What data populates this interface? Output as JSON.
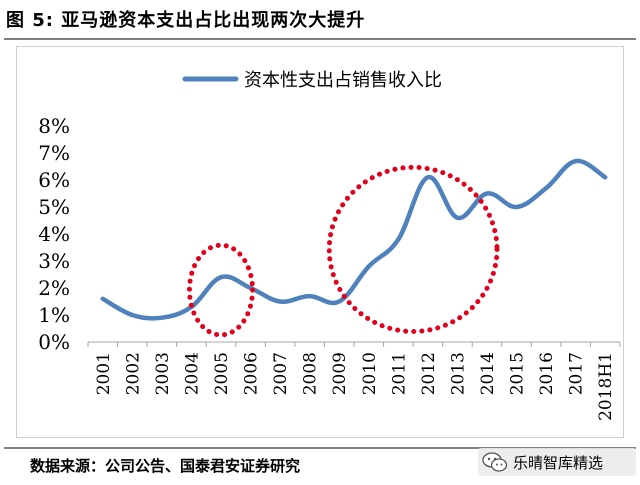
{
  "figure": {
    "title": "图 5:  亚马逊资本支出占比出现两次大提升",
    "source": "数据来源：公司公告、国泰君安证券研究",
    "watermark": "乐晴智库精选",
    "watermark_icon": "wechat-icon"
  },
  "chart_data": {
    "type": "line",
    "title": "",
    "xlabel": "",
    "ylabel": "",
    "legend_position": "top-center",
    "grid": false,
    "ylim": [
      0,
      8
    ],
    "ytick_labels": [
      "0%",
      "1%",
      "2%",
      "3%",
      "4%",
      "5%",
      "6%",
      "7%",
      "8%"
    ],
    "categories": [
      "2001",
      "2002",
      "2003",
      "2004",
      "2005",
      "2006",
      "2007",
      "2008",
      "2009",
      "2010",
      "2011",
      "2012",
      "2013",
      "2014",
      "2015",
      "2016",
      "2017",
      "2018H1"
    ],
    "series": [
      {
        "name": "资本性支出占销售收入比",
        "color": "#4f81bd",
        "values": [
          1.6,
          1.0,
          0.9,
          1.3,
          2.4,
          2.0,
          1.5,
          1.7,
          1.5,
          2.8,
          3.8,
          6.1,
          4.6,
          5.5,
          5.0,
          5.7,
          6.7,
          6.1
        ]
      }
    ],
    "annotations": [
      {
        "type": "dotted-ellipse",
        "color": "#e0001b",
        "around": [
          "2004",
          "2006"
        ]
      },
      {
        "type": "dotted-ellipse",
        "color": "#e0001b",
        "around": [
          "2009",
          "2014"
        ]
      }
    ]
  }
}
